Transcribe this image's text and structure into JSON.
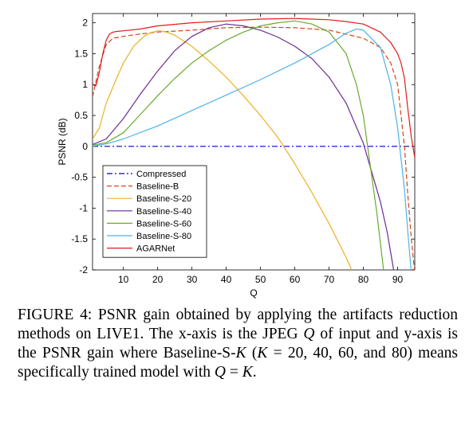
{
  "chart_data": {
    "type": "line",
    "title": "",
    "xlabel": "Q",
    "ylabel": "PSNR (dB)",
    "xlim": [
      1,
      95
    ],
    "ylim": [
      -2,
      2.15
    ],
    "xticks": [
      10,
      20,
      30,
      40,
      50,
      60,
      70,
      80,
      90
    ],
    "yticks": [
      -2,
      -1.5,
      -1,
      -0.5,
      0,
      0.5,
      1,
      1.5,
      2
    ],
    "xtick_labels": [
      "10",
      "20",
      "30",
      "40",
      "50",
      "60",
      "70",
      "80",
      "90"
    ],
    "ytick_labels": [
      "-2",
      "-1.5",
      "-1",
      "-0.5",
      "0",
      "0.5",
      "1",
      "1.5",
      "2"
    ],
    "grid": false,
    "legend_position": "bottom-left",
    "series": [
      {
        "name": "Compressed",
        "color": "#0000cc",
        "dash": "dashdot",
        "x": [
          1,
          95
        ],
        "y": [
          0,
          0
        ]
      },
      {
        "name": "Baseline-B",
        "color": "#d9441a",
        "dash": "dashed",
        "x": [
          1,
          3,
          5,
          7,
          10,
          15,
          20,
          30,
          40,
          50,
          60,
          70,
          80,
          85,
          88,
          90,
          91,
          92,
          93,
          94,
          95
        ],
        "y": [
          0.8,
          1.3,
          1.65,
          1.75,
          1.78,
          1.82,
          1.85,
          1.88,
          1.92,
          1.93,
          1.92,
          1.88,
          1.75,
          1.6,
          1.35,
          1.0,
          0.5,
          0.0,
          -0.8,
          -1.5,
          -2.05
        ]
      },
      {
        "name": "Baseline-S-20",
        "color": "#edb120",
        "dash": "solid",
        "x": [
          1,
          3,
          5,
          8,
          10,
          13,
          16,
          18,
          20,
          22,
          25,
          30,
          35,
          40,
          45,
          50,
          55,
          60,
          65,
          70,
          75,
          77
        ],
        "y": [
          0.12,
          0.3,
          0.7,
          1.1,
          1.35,
          1.62,
          1.78,
          1.84,
          1.87,
          1.86,
          1.8,
          1.62,
          1.38,
          1.12,
          0.82,
          0.5,
          0.15,
          -0.28,
          -0.75,
          -1.25,
          -1.8,
          -2.05
        ]
      },
      {
        "name": "Baseline-S-40",
        "color": "#6a2c91",
        "dash": "solid",
        "x": [
          1,
          5,
          10,
          15,
          20,
          25,
          30,
          35,
          40,
          45,
          50,
          55,
          60,
          65,
          70,
          75,
          80,
          85,
          87,
          89
        ],
        "y": [
          0.03,
          0.12,
          0.45,
          0.85,
          1.22,
          1.55,
          1.78,
          1.92,
          1.98,
          1.95,
          1.88,
          1.77,
          1.62,
          1.42,
          1.12,
          0.7,
          0.05,
          -0.9,
          -1.4,
          -2.05
        ]
      },
      {
        "name": "Baseline-S-60",
        "color": "#6aaa2c",
        "dash": "solid",
        "x": [
          1,
          5,
          10,
          15,
          20,
          25,
          30,
          35,
          40,
          45,
          50,
          55,
          60,
          65,
          70,
          75,
          78,
          80,
          82,
          84,
          86
        ],
        "y": [
          0.02,
          0.06,
          0.22,
          0.52,
          0.82,
          1.1,
          1.35,
          1.55,
          1.72,
          1.85,
          1.95,
          2.0,
          2.03,
          1.98,
          1.85,
          1.5,
          1.0,
          0.5,
          -0.3,
          -1.1,
          -2.05
        ]
      },
      {
        "name": "Baseline-S-80",
        "color": "#4db3e6",
        "dash": "solid",
        "x": [
          1,
          5,
          10,
          20,
          30,
          40,
          50,
          60,
          70,
          75,
          78,
          80,
          85,
          88,
          90,
          92,
          93,
          94
        ],
        "y": [
          0.0,
          0.04,
          0.12,
          0.33,
          0.58,
          0.83,
          1.08,
          1.35,
          1.65,
          1.83,
          1.9,
          1.88,
          1.6,
          1.0,
          0.3,
          -0.7,
          -1.4,
          -2.05
        ]
      },
      {
        "name": "AGARNet",
        "color": "#e31a1c",
        "dash": "solid",
        "x": [
          1,
          2,
          3,
          4,
          5,
          6,
          7,
          8,
          10,
          15,
          20,
          30,
          40,
          50,
          60,
          70,
          75,
          80,
          85,
          88,
          90,
          91,
          92,
          93,
          94,
          95
        ],
        "y": [
          1.0,
          0.98,
          1.2,
          1.5,
          1.72,
          1.82,
          1.85,
          1.86,
          1.87,
          1.9,
          1.95,
          2.0,
          2.03,
          2.06,
          2.07,
          2.05,
          2.02,
          1.98,
          1.85,
          1.68,
          1.5,
          1.35,
          1.1,
          0.6,
          0.15,
          -0.18
        ]
      }
    ]
  },
  "caption": {
    "parts": [
      {
        "t": "FIGURE 4: PSNR gain obtained by applying the artifacts reduction methods on LIVE1. The x-axis is the JPEG ",
        "i": false
      },
      {
        "t": "Q",
        "i": true
      },
      {
        "t": " of input and y-axis is the PSNR gain where Baseline-S-",
        "i": false
      },
      {
        "t": "K",
        "i": true
      },
      {
        "t": " (",
        "i": false
      },
      {
        "t": "K",
        "i": true
      },
      {
        "t": " = 20, 40, 60, and 80) means specifically trained model with ",
        "i": false
      },
      {
        "t": "Q",
        "i": true
      },
      {
        "t": " = ",
        "i": false
      },
      {
        "t": "K",
        "i": true
      },
      {
        "t": ".",
        "i": false
      }
    ]
  }
}
